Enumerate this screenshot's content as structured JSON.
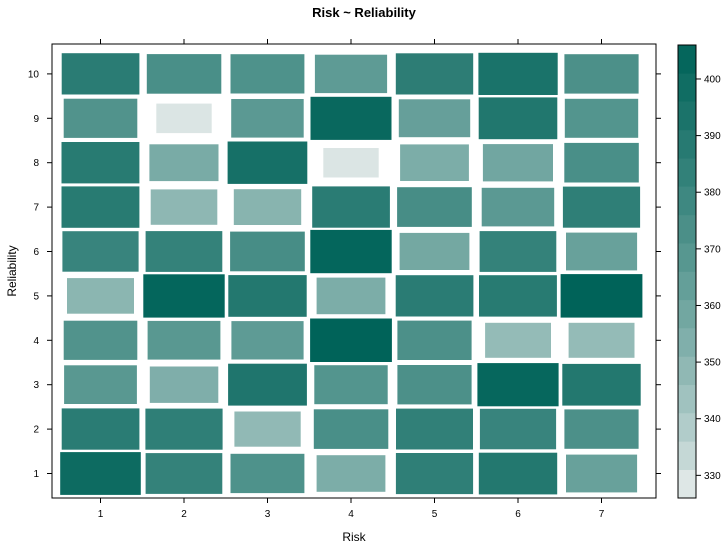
{
  "chart_data": {
    "type": "heatmap",
    "title": "Risk ~ Reliability",
    "xlabel": "Risk",
    "ylabel": "Reliability",
    "x_categories": [
      "1",
      "2",
      "3",
      "4",
      "5",
      "6",
      "7"
    ],
    "y_categories": [
      "1",
      "2",
      "3",
      "4",
      "5",
      "6",
      "7",
      "8",
      "9",
      "10"
    ],
    "values": [
      [
        400,
        383,
        372,
        355,
        385,
        390,
        362
      ],
      [
        387,
        385,
        348,
        374,
        384,
        381,
        373
      ],
      [
        368,
        354,
        392,
        370,
        373,
        403,
        390
      ],
      [
        371,
        368,
        366,
        406,
        373,
        347,
        347
      ],
      [
        350,
        404,
        390,
        355,
        387,
        388,
        406
      ],
      [
        381,
        383,
        375,
        404,
        358,
        383,
        362
      ],
      [
        388,
        349,
        351,
        387,
        375,
        367,
        385
      ],
      [
        388,
        356,
        396,
        329,
        355,
        359,
        374
      ],
      [
        371,
        329,
        367,
        402,
        363,
        391,
        370
      ],
      [
        387,
        374,
        372,
        366,
        386,
        394,
        373
      ]
    ],
    "colorbar": {
      "ticks": [
        "330",
        "340",
        "350",
        "360",
        "370",
        "380",
        "390",
        "400"
      ],
      "range": [
        326,
        406
      ],
      "low_color": "#F4F4F4",
      "high_color": "#006359"
    },
    "grid": false
  }
}
